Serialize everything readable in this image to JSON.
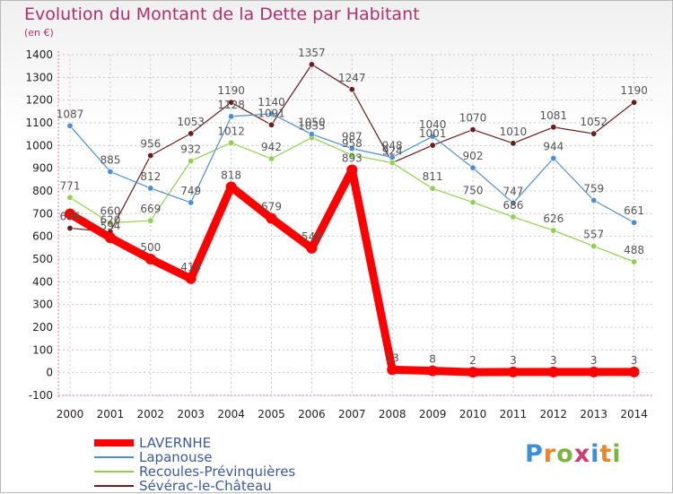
{
  "title": "Evolution du Montant de la Dette par Habitant",
  "unit": "(en €)",
  "logo": "Proxiti",
  "chart_data": {
    "type": "line",
    "x": [
      "2000",
      "2001",
      "2002",
      "2003",
      "2004",
      "2005",
      "2006",
      "2007",
      "2008",
      "2009",
      "2010",
      "2011",
      "2012",
      "2013",
      "2014"
    ],
    "ylim": [
      -100,
      1400
    ],
    "yticks": [
      -100,
      0,
      100,
      200,
      300,
      400,
      500,
      600,
      700,
      800,
      900,
      1000,
      1100,
      1200,
      1300,
      1400
    ],
    "grid": true,
    "legend_position": "bottom-left",
    "series": [
      {
        "name": "LAVERNHE",
        "color": "#ff0000",
        "values": [
          699,
          594,
          500,
          414,
          818,
          679,
          548,
          893,
          13,
          8,
          2,
          3,
          3,
          3,
          3
        ],
        "labels": [
          "",
          "594",
          "500",
          "414",
          "818",
          "679",
          "548",
          "893",
          "13",
          "8",
          "2",
          "3",
          "3",
          "3",
          "3"
        ]
      },
      {
        "name": "Lapanouse",
        "color": "#4f8fd1",
        "values": [
          1087,
          885,
          812,
          749,
          1128,
          1140,
          1050,
          987,
          948,
          1040,
          902,
          747,
          944,
          759,
          661
        ],
        "labels": [
          "1087",
          "885",
          "812",
          "749",
          "1128",
          "1140",
          "1050",
          "987",
          "948",
          "1040",
          "902",
          "747",
          "944",
          "759",
          "661"
        ]
      },
      {
        "name": "Recoules-Prévinquières",
        "color": "#8fd14f",
        "values": [
          771,
          660,
          669,
          932,
          1012,
          942,
          1035,
          958,
          924,
          811,
          750,
          686,
          626,
          557,
          488
        ],
        "labels": [
          "771",
          "660",
          "669",
          "932",
          "1012",
          "942",
          "1035",
          "958",
          "924",
          "811",
          "750",
          "686",
          "626",
          "557",
          "488"
        ]
      },
      {
        "name": "Sévérac-le-Château",
        "color": "#6b1c1c",
        "values": [
          636,
          620,
          956,
          1053,
          1190,
          1091,
          1357,
          1247,
          924,
          1001,
          1070,
          1010,
          1081,
          1052,
          1190
        ],
        "labels": [
          "636",
          "620",
          "956",
          "1053",
          "1190",
          "1091",
          "1357",
          "1247",
          "924",
          "1001",
          "1070",
          "1010",
          "1081",
          "1052",
          "1190"
        ]
      }
    ]
  }
}
